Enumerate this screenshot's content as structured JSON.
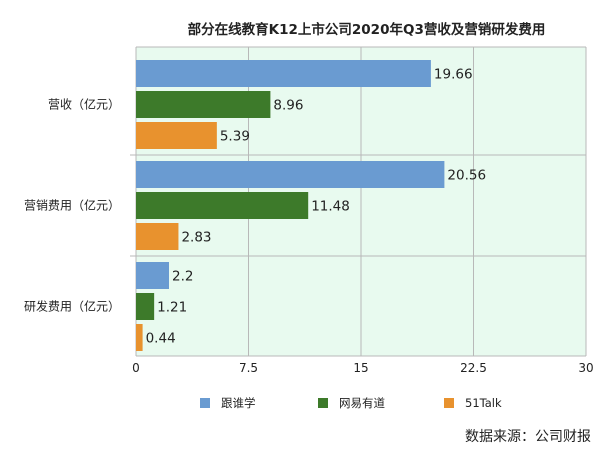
{
  "chart_data": {
    "type": "bar",
    "orientation": "horizontal",
    "title": "部分在线教育K12上市公司2020年Q3营收及营销研发费用",
    "categories": [
      "营收（亿元）",
      "营销费用（亿元）",
      "研发费用（亿元）"
    ],
    "series": [
      {
        "name": "跟谁学",
        "color": "#6a9bd1",
        "values": [
          19.66,
          20.56,
          2.2
        ]
      },
      {
        "name": "网易有道",
        "color": "#3d7a2a",
        "values": [
          8.96,
          11.48,
          1.21
        ]
      },
      {
        "name": "51Talk",
        "color": "#e8922e",
        "values": [
          5.39,
          2.83,
          0.44
        ]
      }
    ],
    "xlim": [
      0,
      30
    ],
    "xticks": [
      0,
      7.5,
      15,
      22.5,
      30
    ],
    "xtick_labels": [
      "0",
      "7.5",
      "15",
      "22.5",
      "30"
    ],
    "grid": true,
    "legend_position": "bottom",
    "plot_background": "#e8faef",
    "grid_color": "#b8b8b8"
  },
  "source_note": "数据来源：公司财报"
}
